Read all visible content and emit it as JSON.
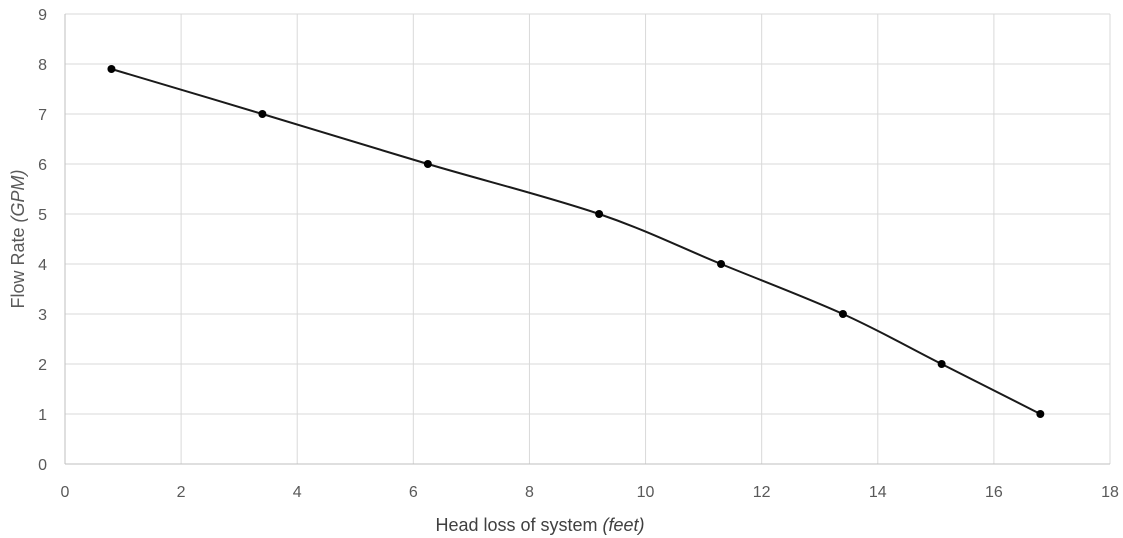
{
  "chart_data": {
    "type": "scatter",
    "title": "",
    "xlabel": {
      "main": "Head loss of system ",
      "italic": "(feet)"
    },
    "ylabel": {
      "main": "Flow Rate ",
      "italic": "(GPM)"
    },
    "xlim": [
      0,
      18
    ],
    "ylim": [
      0,
      9
    ],
    "xticks": [
      0,
      2,
      4,
      6,
      8,
      10,
      12,
      14,
      16,
      18
    ],
    "yticks": [
      0,
      1,
      2,
      3,
      4,
      5,
      6,
      7,
      8,
      9
    ],
    "grid": true,
    "legend": "none",
    "series": [
      {
        "color": "#1a1a1a",
        "marker_color": "#000000",
        "line": "smooth",
        "points": [
          {
            "x": 0.8,
            "y": 7.9
          },
          {
            "x": 3.4,
            "y": 7.0
          },
          {
            "x": 6.25,
            "y": 6.0
          },
          {
            "x": 9.2,
            "y": 5.0
          },
          {
            "x": 11.3,
            "y": 4.0
          },
          {
            "x": 13.4,
            "y": 3.0
          },
          {
            "x": 15.1,
            "y": 2.0
          },
          {
            "x": 16.8,
            "y": 1.0
          }
        ]
      }
    ]
  }
}
